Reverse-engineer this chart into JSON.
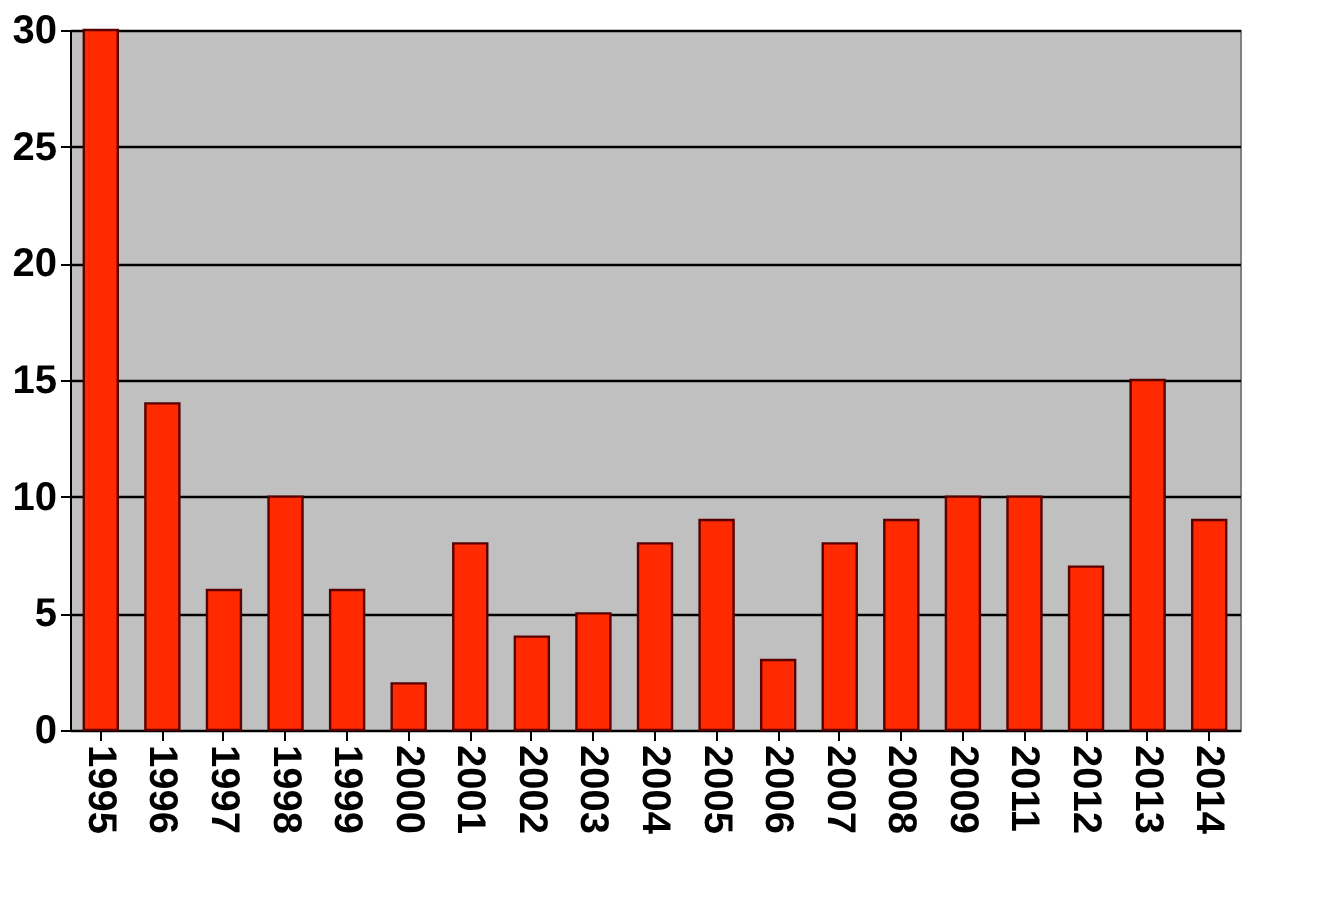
{
  "chart_data": {
    "type": "bar",
    "categories": [
      "1995",
      "1996",
      "1997",
      "1998",
      "1999",
      "2000",
      "2001",
      "2002",
      "2003",
      "2004",
      "2005",
      "2006",
      "2007",
      "2008",
      "2009",
      "2011",
      "2012",
      "2013",
      "2014"
    ],
    "values": [
      30,
      14,
      6,
      10,
      6,
      2,
      8,
      4,
      5,
      8,
      9,
      3,
      8,
      9,
      10,
      10,
      7,
      15,
      9
    ],
    "color": "#ff2a00",
    "ylim": [
      0,
      30
    ],
    "yticks": [
      0,
      5,
      10,
      15,
      20,
      25,
      30
    ],
    "grid": "y"
  }
}
